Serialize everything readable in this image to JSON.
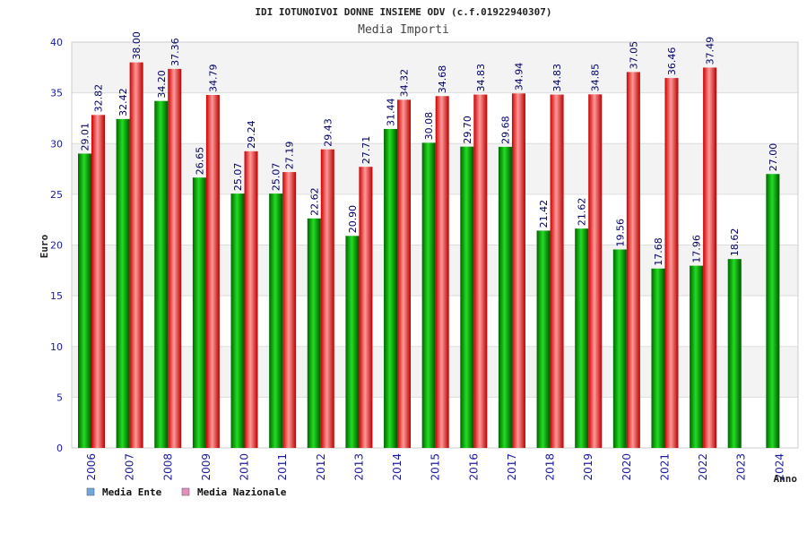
{
  "chart_data": {
    "type": "bar",
    "title": "IDI IOTUNOIVOI DONNE INSIEME ODV (c.f.01922940307)",
    "subtitle": "Media Importi",
    "xlabel": "Anno",
    "ylabel": "Euro",
    "ylim": [
      0,
      40
    ],
    "yticks": [
      "0",
      "5",
      "10",
      "15",
      "20",
      "25",
      "30",
      "35",
      "40"
    ],
    "grid": true,
    "legend_placement": "bottom-left",
    "categories": [
      "2006",
      "2007",
      "2008",
      "2009",
      "2010",
      "2011",
      "2012",
      "2013",
      "2014",
      "2015",
      "2016",
      "2017",
      "2018",
      "2019",
      "2020",
      "2021",
      "2022",
      "2023",
      "2024"
    ],
    "series": [
      {
        "name": "Media Ente",
        "color": "#00aa00",
        "legend_color": "#6fa8dc",
        "values": [
          29.01,
          32.42,
          34.2,
          26.65,
          25.07,
          25.07,
          22.62,
          20.9,
          31.44,
          30.08,
          29.7,
          29.68,
          21.42,
          21.62,
          19.56,
          17.68,
          17.96,
          18.62,
          27.0
        ],
        "labels": [
          "29.01",
          "32.42",
          "34.20",
          "26.65",
          "25.07",
          "25.07",
          "22.62",
          "20.90",
          "31.44",
          "30.08",
          "29.70",
          "29.68",
          "21.42",
          "21.62",
          "19.56",
          "17.68",
          "17.96",
          "18.62",
          "27.00"
        ]
      },
      {
        "name": "Media Nazionale",
        "color": "#ee2222",
        "legend_color": "#e58fbf",
        "values": [
          32.82,
          38.0,
          37.36,
          34.79,
          29.24,
          27.19,
          29.43,
          27.71,
          34.32,
          34.68,
          34.83,
          34.94,
          34.83,
          34.85,
          37.05,
          36.46,
          37.49,
          null,
          null
        ],
        "labels": [
          "32.82",
          "38.00",
          "37.36",
          "34.79",
          "29.24",
          "27.19",
          "29.43",
          "27.71",
          "34.32",
          "34.68",
          "34.83",
          "34.94",
          "34.83",
          "34.85",
          "37.05",
          "36.46",
          "37.49",
          null,
          null
        ]
      }
    ]
  }
}
